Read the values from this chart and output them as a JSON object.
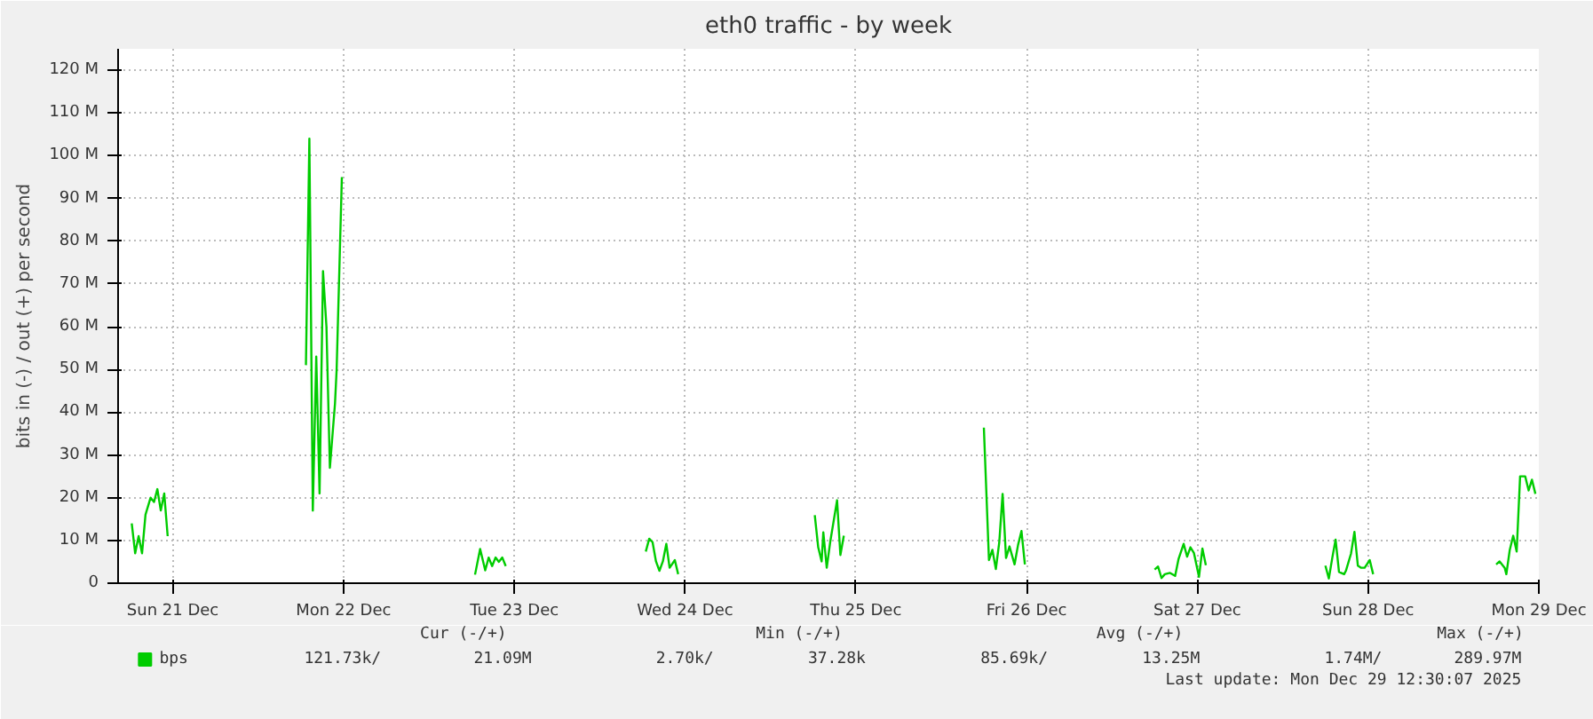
{
  "chart_data": {
    "type": "line",
    "title": "eth0 traffic - by week",
    "ylabel": "bits in (-) / out (+) per second",
    "xlim": [
      "2025-12-21T04:19",
      "2025-12-29T12:00"
    ],
    "ylim": [
      0,
      125
    ],
    "xticks": [
      {
        "value": "2025-12-21T12:00",
        "label": "Sun 21 Dec"
      },
      {
        "value": "2025-12-22T12:00",
        "label": "Mon 22 Dec"
      },
      {
        "value": "2025-12-23T12:00",
        "label": "Tue 23 Dec"
      },
      {
        "value": "2025-12-24T12:00",
        "label": "Wed 24 Dec"
      },
      {
        "value": "2025-12-25T12:00",
        "label": "Thu 25 Dec"
      },
      {
        "value": "2025-12-26T12:00",
        "label": "Fri 26 Dec"
      },
      {
        "value": "2025-12-27T12:00",
        "label": "Sat 27 Dec"
      },
      {
        "value": "2025-12-28T12:00",
        "label": "Sun 28 Dec"
      },
      {
        "value": "2025-12-29T12:00",
        "label": "Mon 29 Dec"
      }
    ],
    "yticks": [
      0,
      {
        "value": 10,
        "label": "10 M"
      },
      {
        "value": 20,
        "label": "20 M"
      },
      {
        "value": 30,
        "label": "30 M"
      },
      {
        "value": 40,
        "label": "40 M"
      },
      {
        "value": 50,
        "label": "50 M"
      },
      {
        "value": 60,
        "label": "60 M"
      },
      {
        "value": 70,
        "label": "70 M"
      },
      {
        "value": 80,
        "label": "80 M"
      },
      {
        "value": 90,
        "label": "90 M"
      },
      {
        "value": 100,
        "label": "100 M"
      },
      {
        "value": 110,
        "label": "110 M"
      },
      {
        "value": 120,
        "label": "120 M"
      }
    ],
    "grid": true,
    "legend": "bottom left",
    "marker": "none",
    "line_style": "solid",
    "series": [
      {
        "name": "bps",
        "color": "#00cc00",
        "x": [
          "2025-12-21T06:14",
          "2025-12-21T06:43",
          "2025-12-21T07:12",
          "2025-12-21T07:41",
          "2025-12-21T08:10",
          "2025-12-21T08:53",
          "2025-12-21T09:22",
          "2025-12-21T09:50",
          "2025-12-21T10:19",
          "2025-12-21T10:48",
          "2025-12-21T11:17",
          "2025-12-21T19:12",
          "2025-12-22T06:43",
          "2025-12-22T07:12",
          "2025-12-22T07:41",
          "2025-12-22T08:10",
          "2025-12-22T08:38",
          "2025-12-22T09:07",
          "2025-12-22T09:36",
          "2025-12-22T10:05",
          "2025-12-22T10:48",
          "2025-12-22T11:02",
          "2025-12-22T11:46",
          "2025-12-22T21:36",
          "2025-12-23T06:29",
          "2025-12-23T07:12",
          "2025-12-23T07:55",
          "2025-12-23T08:24",
          "2025-12-23T08:53",
          "2025-12-23T09:22",
          "2025-12-23T09:50",
          "2025-12-23T10:19",
          "2025-12-23T10:48",
          "2025-12-23T21:36",
          "2025-12-24T06:29",
          "2025-12-24T06:58",
          "2025-12-24T07:26",
          "2025-12-24T07:55",
          "2025-12-24T08:24",
          "2025-12-24T08:53",
          "2025-12-24T09:22",
          "2025-12-24T09:50",
          "2025-12-24T10:34",
          "2025-12-24T11:02",
          "2025-12-24T21:36",
          "2025-12-25T06:14",
          "2025-12-25T06:43",
          "2025-12-25T07:12",
          "2025-12-25T07:26",
          "2025-12-25T07:55",
          "2025-12-25T08:24",
          "2025-12-25T09:22",
          "2025-12-25T09:50",
          "2025-12-25T10:19",
          "2025-12-25T21:36",
          "2025-12-26T06:00",
          "2025-12-26T06:43",
          "2025-12-26T07:12",
          "2025-12-26T07:41",
          "2025-12-26T08:10",
          "2025-12-26T08:38",
          "2025-12-26T09:07",
          "2025-12-26T09:36",
          "2025-12-26T10:19",
          "2025-12-26T10:48",
          "2025-12-26T11:17",
          "2025-12-26T11:46",
          "2025-12-26T21:36",
          "2025-12-27T06:00",
          "2025-12-27T06:29",
          "2025-12-27T06:58",
          "2025-12-27T07:26",
          "2025-12-27T08:10",
          "2025-12-27T08:53",
          "2025-12-27T09:22",
          "2025-12-27T10:05",
          "2025-12-27T10:34",
          "2025-12-27T11:02",
          "2025-12-27T11:31",
          "2025-12-27T12:14",
          "2025-12-27T12:43",
          "2025-12-27T13:12",
          "2025-12-27T21:36",
          "2025-12-28T06:00",
          "2025-12-28T06:29",
          "2025-12-28T06:58",
          "2025-12-28T07:26",
          "2025-12-28T07:55",
          "2025-12-28T08:38",
          "2025-12-28T08:53",
          "2025-12-28T09:36",
          "2025-12-28T10:05",
          "2025-12-28T10:34",
          "2025-12-28T11:02",
          "2025-12-28T11:31",
          "2025-12-28T12:14",
          "2025-12-28T12:43",
          "2025-12-28T21:36",
          "2025-12-29T06:00",
          "2025-12-29T06:29",
          "2025-12-29T07:12",
          "2025-12-29T07:26",
          "2025-12-29T07:55",
          "2025-12-29T08:24",
          "2025-12-29T08:53",
          "2025-12-29T09:22",
          "2025-12-29T10:05",
          "2025-12-29T10:34",
          "2025-12-29T11:02",
          "2025-12-29T11:31"
        ],
        "values": [
          14,
          7,
          11,
          7,
          16,
          20,
          19,
          22,
          17,
          21,
          11,
          null,
          51,
          104,
          17,
          53,
          21,
          73,
          60,
          27,
          42,
          50,
          95,
          null,
          2,
          8,
          3,
          6,
          4,
          6,
          5,
          6,
          4,
          null,
          7.4,
          10.4,
          9.6,
          5.1,
          2.9,
          5.1,
          9.2,
          3.6,
          5.4,
          2.1,
          null,
          15.9,
          8.4,
          5.1,
          11.9,
          3.6,
          9.6,
          19.4,
          6.6,
          11.1,
          null,
          36.4,
          5.4,
          7.8,
          3.3,
          9.6,
          20.9,
          5.9,
          8.6,
          4.4,
          8.9,
          12.2,
          4.4,
          null,
          3.2,
          3.9,
          1.2,
          2.1,
          2.4,
          1.7,
          5.7,
          9.2,
          6.2,
          8.4,
          7.1,
          1.5,
          8.1,
          4.2,
          null,
          4.1,
          1.1,
          5.9,
          10.2,
          2.6,
          2.1,
          2.9,
          6.9,
          12.0,
          4.1,
          3.6,
          3.6,
          5.4,
          2.1,
          null,
          4.4,
          5.1,
          3.6,
          2.1,
          7.8,
          11.1,
          7.4,
          25.0,
          25.0,
          21.7,
          24.2,
          20.9
        ]
      }
    ],
    "annotations": [
      "Cur (-/+)",
      "Min (-/+)",
      "Avg (-/+)",
      "Max (-/+)",
      "121.73k/",
      "21.09M",
      "2.70k/",
      "37.28k",
      "85.69k/",
      "13.25M",
      "1.74M/",
      "289.97M",
      "Last update: Mon Dec 29 12:30:07 2025"
    ]
  }
}
